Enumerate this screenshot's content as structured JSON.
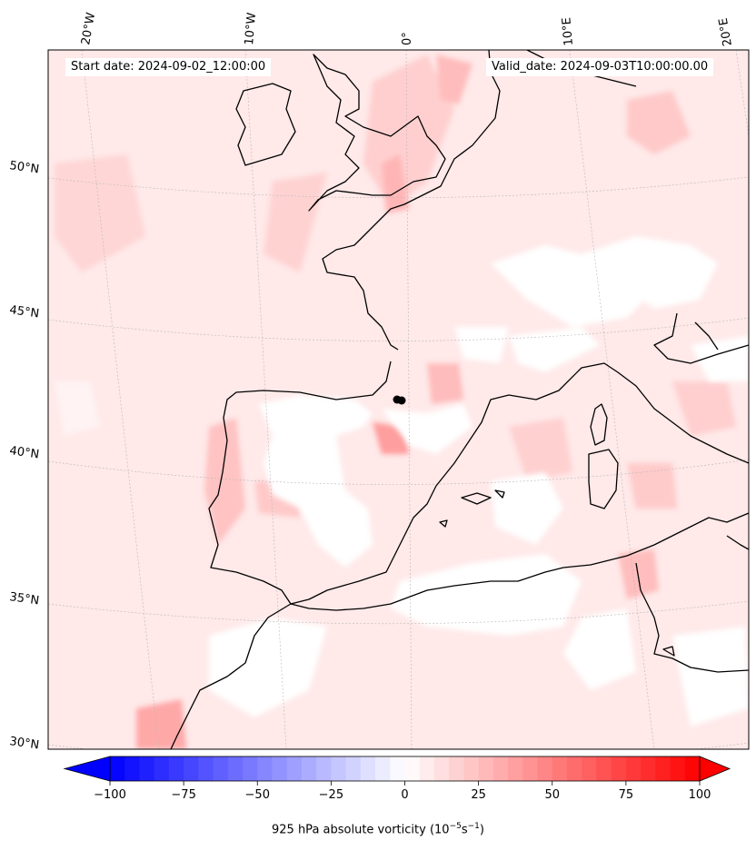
{
  "map": {
    "start_date": "Start date: 2024-09-02_12:00:00",
    "valid_date": "Valid_date: 2024-09-03T10:00:00.00",
    "projection": "conic",
    "gridlines": "dashed",
    "coastlines": true,
    "marker": {
      "lon": -0.1,
      "lat": 41.6,
      "color": "#000000"
    },
    "lon_labels": [
      "20°W",
      "10°W",
      "0°",
      "10°E",
      "20°E"
    ],
    "lat_labels": [
      "50°N",
      "45°N",
      "40°N",
      "35°N",
      "30°N"
    ]
  },
  "colorbar": {
    "title_prefix": "925 hPa absolute vorticity (10",
    "title_exp1": "−5",
    "title_mid": "s",
    "title_exp2": "−1",
    "title_suffix": ")",
    "vmin": -100,
    "vmax": 100,
    "step": 5,
    "ticks": [
      "−100",
      "−75",
      "−50",
      "−25",
      "0",
      "25",
      "50",
      "75",
      "100"
    ],
    "tick_values": [
      -100,
      -75,
      -50,
      -25,
      0,
      25,
      50,
      75,
      100
    ],
    "colormap": "bwr",
    "extend": "both"
  }
}
